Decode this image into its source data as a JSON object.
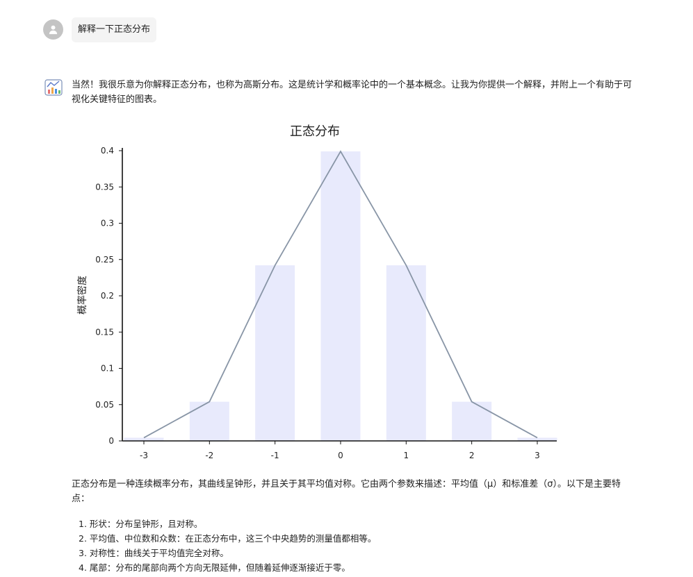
{
  "user_message": "解释一下正态分布",
  "assistant": {
    "intro": "当然！我很乐意为你解释正态分布，也称为高斯分布。这是统计学和概率论中的一个基本概念。让我为你提供一个解释，并附上一个有助于可视化关键特征的图表。",
    "description": "正态分布是一种连续概率分布，其曲线呈钟形，并且关于其平均值对称。它由两个参数来描述：平均值（μ）和标准差（σ）。以下是主要特点：",
    "features": [
      "1. 形状：分布呈钟形，且对称。",
      "2. 平均值、中位数和众数：在正态分布中，这三个中央趋势的测量值都相等。",
      "3. 对称性：曲线关于平均值完全对称。",
      "4. 尾部：分布的尾部向两个方向无限延伸，但随着延伸逐渐接近于零。"
    ]
  },
  "icons": {
    "avatar": "user-icon",
    "assistant": "chart-logo-icon"
  },
  "colors": {
    "bar": "#e8eafc",
    "line": "#8895a6",
    "axis": "#111111"
  },
  "chart_data": {
    "type": "bar",
    "title": "正态分布",
    "xlabel": "",
    "ylabel": "概率密度",
    "categories": [
      "-3",
      "-2",
      "-1",
      "0",
      "1",
      "2",
      "3"
    ],
    "x": [
      -3,
      -2,
      -1,
      0,
      1,
      2,
      3
    ],
    "values": [
      0.0044,
      0.054,
      0.242,
      0.399,
      0.242,
      0.054,
      0.0044
    ],
    "line_values": [
      0.0044,
      0.054,
      0.242,
      0.399,
      0.242,
      0.054,
      0.0044
    ],
    "yticks": [
      "0",
      "0.05",
      "0.1",
      "0.15",
      "0.2",
      "0.25",
      "0.3",
      "0.35",
      "0.4"
    ],
    "ylim": [
      0,
      0.4
    ],
    "grid": false,
    "legend": "none"
  }
}
